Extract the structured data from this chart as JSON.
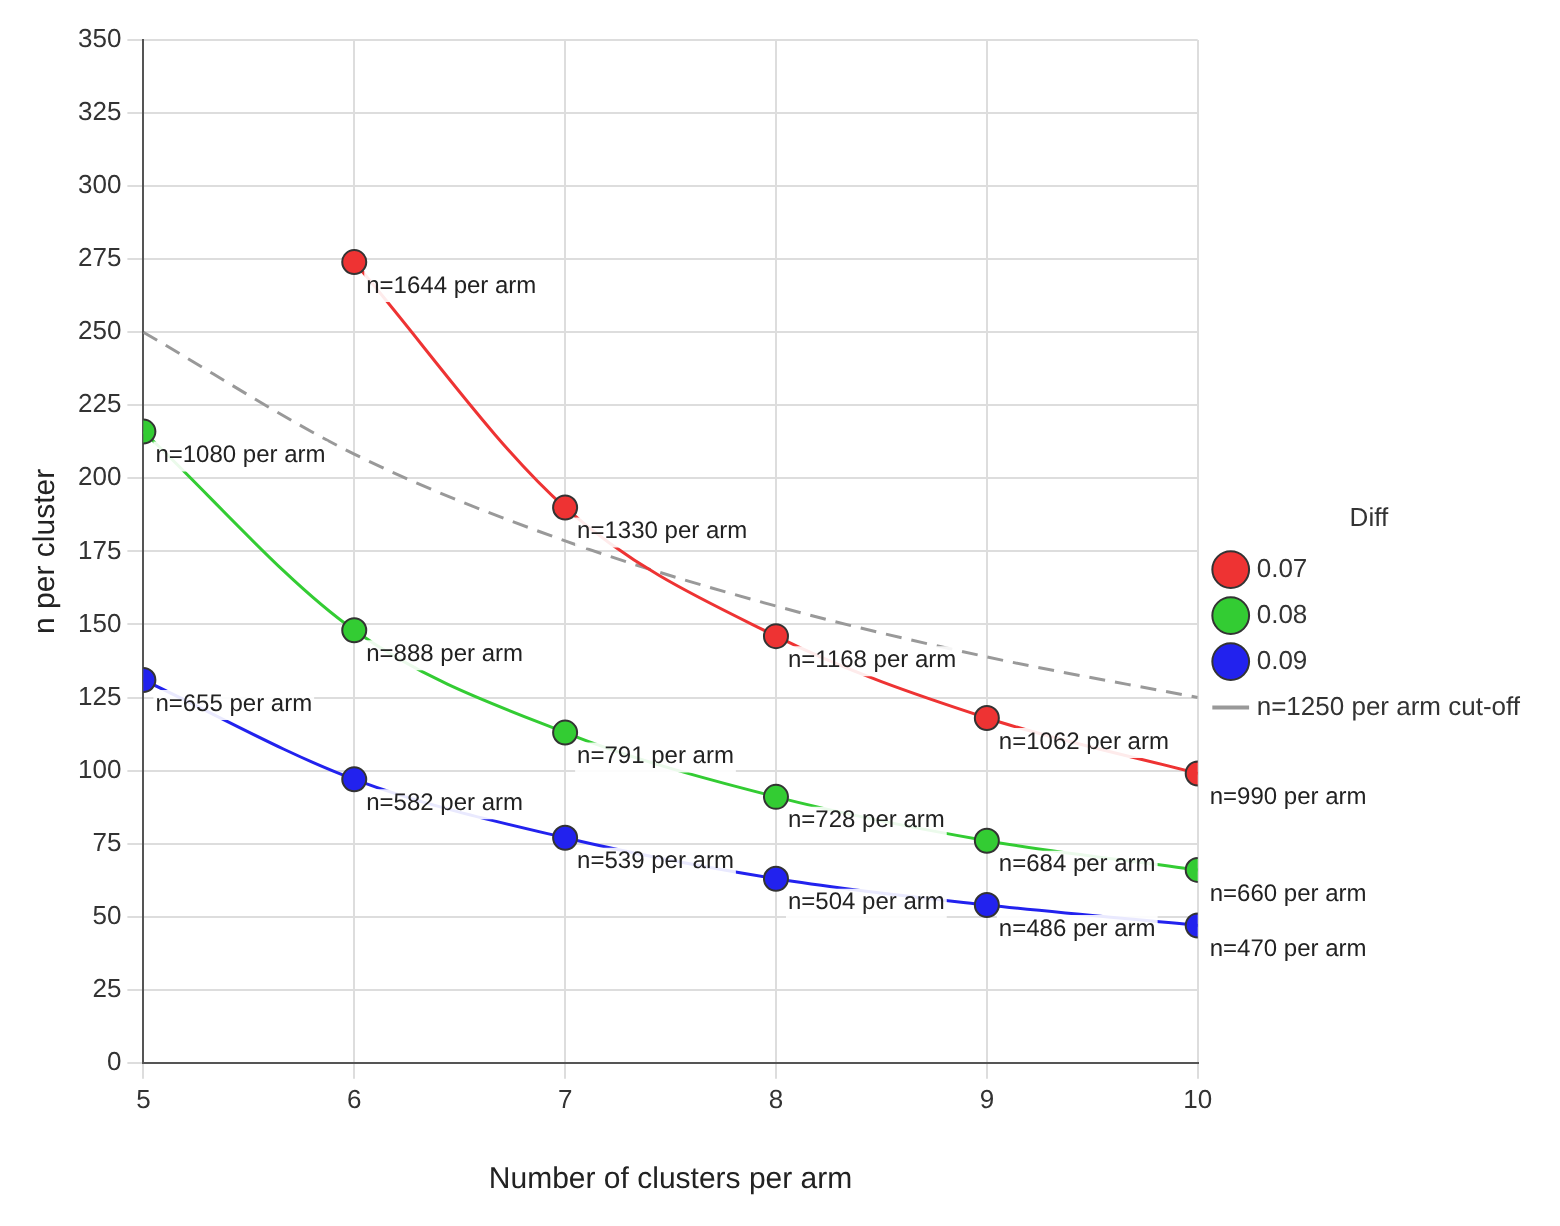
{
  "chart_data": {
    "type": "line",
    "xlabel": "Number of clusters per arm",
    "ylabel": "n per cluster",
    "legend_title": "Diff",
    "legend": "right",
    "grid": true,
    "marker": "circle",
    "xlim": [
      5,
      10
    ],
    "xticks": [
      5,
      6,
      7,
      8,
      9,
      10
    ],
    "ylim": [
      0,
      350
    ],
    "yticks": [
      0,
      25,
      50,
      75,
      100,
      125,
      150,
      175,
      200,
      225,
      250,
      275,
      300,
      325,
      350
    ],
    "series": [
      {
        "name": "0.07",
        "color": "#ee3333",
        "x": [
          6,
          7,
          8,
          9,
          10
        ],
        "values": [
          274,
          190,
          146,
          118,
          99
        ]
      },
      {
        "name": "0.08",
        "color": "#33cc33",
        "x": [
          5,
          6,
          7,
          8,
          9,
          10
        ],
        "values": [
          216,
          148,
          113,
          91,
          76,
          66
        ]
      },
      {
        "name": "0.09",
        "color": "#2222ee",
        "x": [
          5,
          6,
          7,
          8,
          9,
          10
        ],
        "values": [
          131,
          97,
          77,
          63,
          54,
          47
        ]
      },
      {
        "name": "n=1250 per arm cut-off",
        "color": "#999999",
        "marker": "none",
        "line_style": "dashed",
        "x": [
          5,
          6,
          7,
          8,
          9,
          10
        ],
        "values": [
          250,
          208.3,
          178.6,
          156.3,
          138.9,
          125
        ]
      }
    ],
    "annotations": [
      {
        "text": "n=1644 per arm",
        "x": 6,
        "y": 274
      },
      {
        "text": "n=1330 per arm",
        "x": 7,
        "y": 190
      },
      {
        "text": "n=1168 per arm",
        "x": 8,
        "y": 146
      },
      {
        "text": "n=1062 per arm",
        "x": 9,
        "y": 118
      },
      {
        "text": "n=990 per arm",
        "x": 10,
        "y": 99
      },
      {
        "text": "n=1080 per arm",
        "x": 5,
        "y": 216
      },
      {
        "text": "n=888 per arm",
        "x": 6,
        "y": 148
      },
      {
        "text": "n=791 per arm",
        "x": 7,
        "y": 113
      },
      {
        "text": "n=728 per arm",
        "x": 8,
        "y": 91
      },
      {
        "text": "n=684 per arm",
        "x": 9,
        "y": 76
      },
      {
        "text": "n=660 per arm",
        "x": 10,
        "y": 66
      },
      {
        "text": "n=655 per arm",
        "x": 5,
        "y": 131
      },
      {
        "text": "n=582 per arm",
        "x": 6,
        "y": 97
      },
      {
        "text": "n=539 per arm",
        "x": 7,
        "y": 77
      },
      {
        "text": "n=504 per arm",
        "x": 8,
        "y": 63
      },
      {
        "text": "n=486 per arm",
        "x": 9,
        "y": 54
      },
      {
        "text": "n=470 per arm",
        "x": 10,
        "y": 47
      }
    ]
  }
}
